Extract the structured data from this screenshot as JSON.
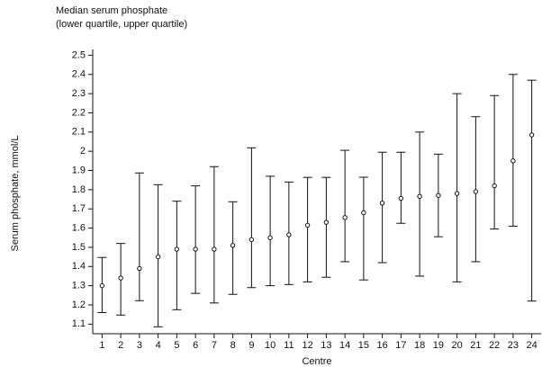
{
  "chart_data": {
    "type": "errorbar",
    "title": "Median serum phosphate",
    "subtitle": "(lower quartile, upper quartile)",
    "y_label": "Serum phosphate, mmol/L",
    "x_label": "Centre",
    "categories": [
      "1",
      "2",
      "3",
      "4",
      "5",
      "6",
      "7",
      "8",
      "9",
      "10",
      "11",
      "12",
      "13",
      "14",
      "15",
      "16",
      "17",
      "18",
      "19",
      "20",
      "21",
      "22",
      "23",
      "24"
    ],
    "median": [
      1.3,
      1.34,
      1.39,
      1.45,
      1.49,
      1.49,
      1.49,
      1.51,
      1.54,
      1.55,
      1.565,
      1.615,
      1.63,
      1.655,
      1.68,
      1.73,
      1.755,
      1.765,
      1.77,
      1.78,
      1.79,
      1.82,
      1.95,
      2.085
    ],
    "lower_quartile": [
      1.16,
      1.147,
      1.222,
      1.086,
      1.175,
      1.26,
      1.21,
      1.255,
      1.29,
      1.3,
      1.306,
      1.32,
      1.344,
      1.425,
      1.33,
      1.42,
      1.625,
      1.35,
      1.555,
      1.32,
      1.425,
      1.595,
      1.61,
      1.22
    ],
    "upper_quartile": [
      1.447,
      1.52,
      1.887,
      1.826,
      1.74,
      1.82,
      1.92,
      1.737,
      2.018,
      1.87,
      1.84,
      1.864,
      1.864,
      2.005,
      1.865,
      1.995,
      1.995,
      2.1,
      1.985,
      2.3,
      2.18,
      2.29,
      2.4,
      2.37
    ],
    "color": "#111111",
    "ylim": [
      1.05,
      2.53
    ],
    "yticks": [
      1.1,
      1.2,
      1.3,
      1.4,
      1.5,
      1.6,
      1.7,
      1.8,
      1.9,
      2,
      2.1,
      2.2,
      2.3,
      2.4,
      2.5
    ]
  }
}
